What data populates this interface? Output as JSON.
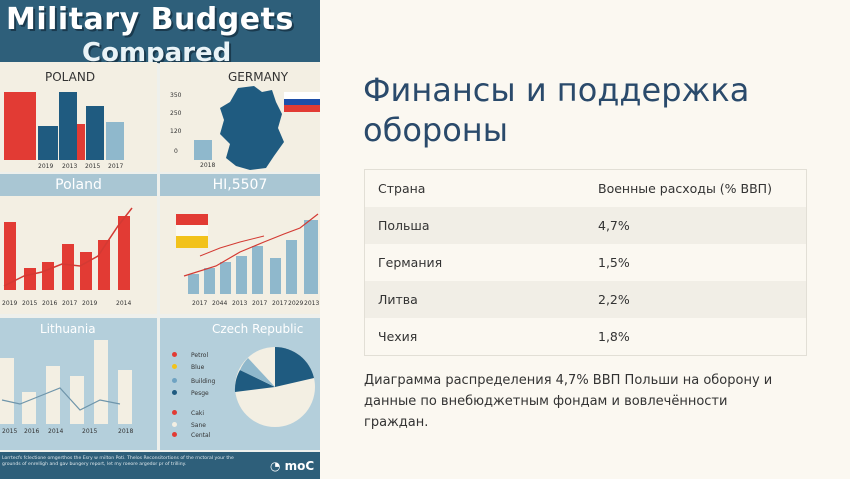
{
  "infographic": {
    "title_line1": "Military Budgets",
    "title_line2": "Compared",
    "panel1_title": "POLAND",
    "panel1_years": [
      "2019",
      "2013",
      "2015",
      "2017"
    ],
    "panel2_title": "GERMANY",
    "panel2_axis": [
      "350",
      "250",
      "120",
      "0"
    ],
    "panel2_year": "2018",
    "band1_left": "Poland",
    "band1_right": "HI,5507",
    "panel3_years": [
      "2019",
      "2015",
      "2016",
      "2017",
      "2019",
      "2014"
    ],
    "panel4_years": [
      "2017",
      "2044",
      "2013",
      "2017",
      "2017",
      "2029",
      "2013"
    ],
    "panel5_title": "Lithuania",
    "panel5_years": [
      "2015",
      "2016",
      "2014",
      "2015",
      "2018"
    ],
    "panel6_title": "Czech Republic",
    "legend1": [
      "Petrol",
      "Blue",
      "Building",
      "Pesge"
    ],
    "legend2": [
      "Caki",
      "Sane",
      "Cental"
    ],
    "footer_text": "Lorrtecfs fclectione omgerthos the Esry w rnilton Poti. Thelos Reconsitortions of the rnctoral your the grounds of enrelligh and gav bungery report, let my roeore argedor pr of trilliny.",
    "footer_brand": "moC",
    "colors": {
      "red": "#e23b34",
      "navy": "#1f5b80",
      "light_blue": "#8fb8cc",
      "banner": "#2e5f7a"
    }
  },
  "heading": "Финансы и поддержка обороны",
  "table": {
    "headers": [
      "Страна",
      "Военные расходы (% ВВП)"
    ],
    "rows": [
      [
        "Польша",
        "4,7%"
      ],
      [
        "Германия",
        "1,5%"
      ],
      [
        "Литва",
        "2,2%"
      ],
      [
        "Чехия",
        "1,8%"
      ]
    ]
  },
  "caption": "Диаграмма распределения 4,7% ВВП Польши на оборону и данные по внебюджетным фондам и вовлечённости граждан."
}
